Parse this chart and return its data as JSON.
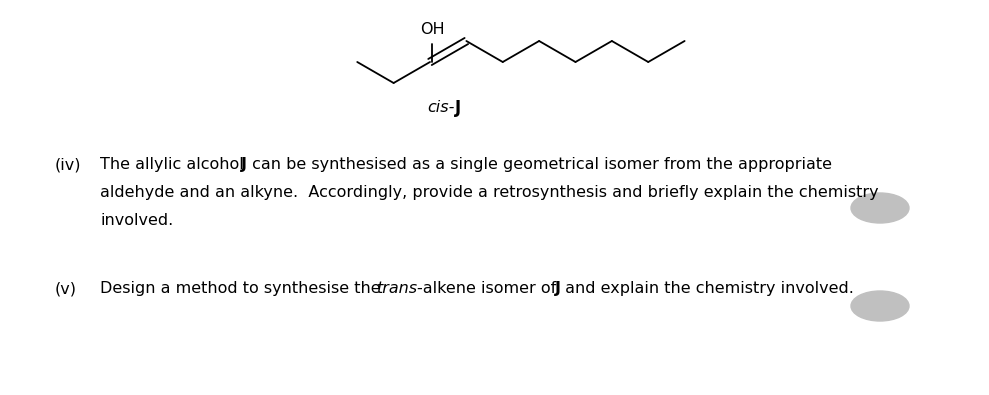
{
  "background_color": "#ffffff",
  "text_color": "#000000",
  "molecule": {
    "oh_label": "OH",
    "cis_label": "cis-",
    "j_label": "J"
  },
  "question_iv_label": "(iv)",
  "question_iv_line1_pre": "The allylic alcohol ",
  "question_iv_line1_bold": "J",
  "question_iv_line1_post": " can be synthesised as a single geometrical isomer from the appropriate",
  "question_iv_line2": "aldehyde and an alkyne.  Accordingly, provide a retrosynthesis and briefly explain the chemistry",
  "question_iv_line3": "involved.",
  "question_v_label": "(v)",
  "question_v_pre": "Design a method to synthesise the ",
  "question_v_italic": "trans",
  "question_v_mid": "-alkene isomer of ",
  "question_v_bold": "J",
  "question_v_post": " and explain the chemistry involved.",
  "font_size": 11.5,
  "gray_color": "#c0c0c0"
}
